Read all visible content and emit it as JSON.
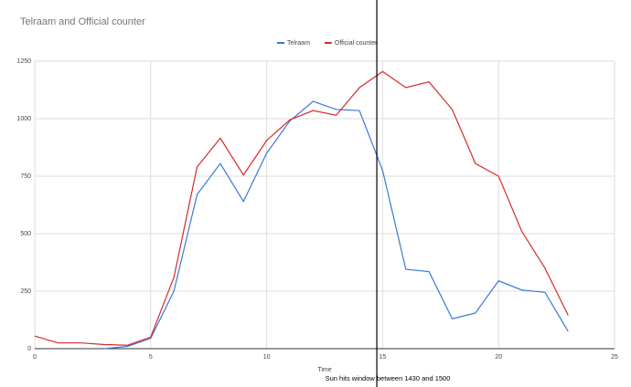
{
  "chart_data": {
    "type": "line",
    "title": "Telraam and Official counter",
    "x": [
      0,
      1,
      2,
      3,
      4,
      5,
      6,
      7,
      8,
      9,
      10,
      11,
      12,
      13,
      14,
      15,
      16,
      17,
      18,
      19,
      20,
      21,
      22,
      23
    ],
    "series": [
      {
        "name": "Telraam",
        "color": "#3b78d8",
        "values": [
          null,
          null,
          null,
          0,
          10,
          45,
          250,
          670,
          805,
          640,
          850,
          990,
          1075,
          1040,
          1035,
          775,
          345,
          335,
          130,
          155,
          295,
          255,
          245,
          75
        ]
      },
      {
        "name": "Official counter",
        "color": "#d62b2b",
        "values": [
          55,
          25,
          25,
          18,
          15,
          50,
          310,
          790,
          915,
          755,
          905,
          995,
          1035,
          1015,
          1135,
          1205,
          1135,
          1160,
          1040,
          805,
          750,
          510,
          350,
          145
        ]
      }
    ],
    "xlabel": "Time",
    "xlim": [
      0,
      25
    ],
    "xticks": [
      0,
      5,
      10,
      15,
      20,
      25
    ],
    "ylim": [
      0,
      1250
    ],
    "yticks": [
      0,
      250,
      500,
      750,
      1000,
      1250
    ],
    "grid": true,
    "legend": "top",
    "marker_x": 14.75,
    "annotation": "Sun hits window between 1430 and 1500"
  }
}
